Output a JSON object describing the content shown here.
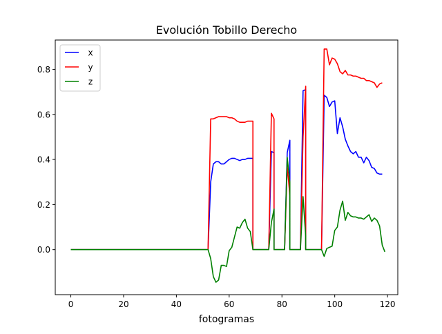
{
  "chart_data": {
    "type": "line",
    "title": "Evolución Tobillo Derecho",
    "xlabel": "fotogramas",
    "ylabel": "",
    "xlim": [
      -5.9,
      123.9
    ],
    "ylim": [
      -0.2,
      0.93
    ],
    "xticks": [
      0,
      20,
      40,
      60,
      80,
      100,
      120
    ],
    "yticks": [
      0.0,
      0.2,
      0.4,
      0.6,
      0.8
    ],
    "xtick_labels": [
      "0",
      "20",
      "40",
      "60",
      "80",
      "100",
      "120"
    ],
    "ytick_labels": [
      "0.0",
      "0.2",
      "0.4",
      "0.6",
      "0.8"
    ],
    "grid": false,
    "legend_position": "upper-left",
    "series": [
      {
        "name": "x",
        "color": "#0000ff",
        "points": [
          [
            0,
            0
          ],
          [
            52,
            0
          ],
          [
            53,
            0.3
          ],
          [
            54,
            0.38
          ],
          [
            55,
            0.39
          ],
          [
            56,
            0.39
          ],
          [
            57,
            0.38
          ],
          [
            58,
            0.38
          ],
          [
            59,
            0.39
          ],
          [
            60,
            0.4
          ],
          [
            61,
            0.405
          ],
          [
            62,
            0.405
          ],
          [
            63,
            0.4
          ],
          [
            64,
            0.395
          ],
          [
            65,
            0.4
          ],
          [
            66,
            0.4
          ],
          [
            67,
            0.405
          ],
          [
            68,
            0.405
          ],
          [
            69,
            0.405
          ],
          [
            69,
            0
          ],
          [
            75,
            0
          ],
          [
            76,
            0.435
          ],
          [
            77,
            0.43
          ],
          [
            77,
            0
          ],
          [
            81,
            0
          ],
          [
            82,
            0.43
          ],
          [
            83,
            0.485
          ],
          [
            83,
            0
          ],
          [
            87,
            0
          ],
          [
            88,
            0.705
          ],
          [
            89,
            0.71
          ],
          [
            89,
            0
          ],
          [
            95,
            0
          ],
          [
            96,
            0.685
          ],
          [
            97,
            0.675
          ],
          [
            98,
            0.635
          ],
          [
            99,
            0.655
          ],
          [
            100,
            0.66
          ],
          [
            101,
            0.515
          ],
          [
            102,
            0.585
          ],
          [
            103,
            0.545
          ],
          [
            104,
            0.49
          ],
          [
            105,
            0.46
          ],
          [
            106,
            0.435
          ],
          [
            107,
            0.425
          ],
          [
            108,
            0.435
          ],
          [
            109,
            0.41
          ],
          [
            110,
            0.41
          ],
          [
            111,
            0.385
          ],
          [
            112,
            0.41
          ],
          [
            113,
            0.395
          ],
          [
            114,
            0.365
          ],
          [
            115,
            0.36
          ],
          [
            116,
            0.34
          ],
          [
            117,
            0.335
          ],
          [
            118,
            0.335
          ]
        ]
      },
      {
        "name": "y",
        "color": "#ff0000",
        "points": [
          [
            0,
            0
          ],
          [
            52,
            0
          ],
          [
            53,
            0.58
          ],
          [
            54,
            0.58
          ],
          [
            55,
            0.585
          ],
          [
            56,
            0.59
          ],
          [
            57,
            0.59
          ],
          [
            58,
            0.59
          ],
          [
            59,
            0.59
          ],
          [
            60,
            0.585
          ],
          [
            61,
            0.585
          ],
          [
            62,
            0.58
          ],
          [
            63,
            0.57
          ],
          [
            64,
            0.565
          ],
          [
            65,
            0.565
          ],
          [
            66,
            0.565
          ],
          [
            67,
            0.57
          ],
          [
            68,
            0.57
          ],
          [
            69,
            0.57
          ],
          [
            69,
            0
          ],
          [
            75,
            0
          ],
          [
            76,
            0.605
          ],
          [
            77,
            0.58
          ],
          [
            77,
            0
          ],
          [
            81,
            0
          ],
          [
            82,
            0.37
          ],
          [
            83,
            0.24
          ],
          [
            83,
            0
          ],
          [
            87,
            0
          ],
          [
            88,
            0.5
          ],
          [
            89,
            0.725
          ],
          [
            89,
            0
          ],
          [
            95,
            0
          ],
          [
            96,
            0.89
          ],
          [
            97,
            0.89
          ],
          [
            98,
            0.82
          ],
          [
            99,
            0.85
          ],
          [
            100,
            0.845
          ],
          [
            101,
            0.825
          ],
          [
            102,
            0.79
          ],
          [
            103,
            0.78
          ],
          [
            104,
            0.795
          ],
          [
            105,
            0.775
          ],
          [
            106,
            0.775
          ],
          [
            107,
            0.77
          ],
          [
            108,
            0.77
          ],
          [
            109,
            0.765
          ],
          [
            110,
            0.76
          ],
          [
            111,
            0.76
          ],
          [
            112,
            0.75
          ],
          [
            113,
            0.75
          ],
          [
            114,
            0.745
          ],
          [
            115,
            0.74
          ],
          [
            116,
            0.72
          ],
          [
            117,
            0.735
          ],
          [
            118,
            0.74
          ]
        ]
      },
      {
        "name": "z",
        "color": "#008000",
        "points": [
          [
            0,
            0
          ],
          [
            52,
            0
          ],
          [
            53,
            -0.04
          ],
          [
            54,
            -0.12
          ],
          [
            55,
            -0.145
          ],
          [
            56,
            -0.135
          ],
          [
            57,
            -0.07
          ],
          [
            58,
            -0.07
          ],
          [
            59,
            -0.075
          ],
          [
            60,
            -0.005
          ],
          [
            61,
            0.01
          ],
          [
            62,
            0.055
          ],
          [
            63,
            0.1
          ],
          [
            64,
            0.095
          ],
          [
            65,
            0.12
          ],
          [
            66,
            0.135
          ],
          [
            67,
            0.095
          ],
          [
            68,
            0.08
          ],
          [
            69,
            0
          ],
          [
            75,
            0
          ],
          [
            76,
            0.12
          ],
          [
            77,
            0.18
          ],
          [
            77,
            0
          ],
          [
            81,
            0
          ],
          [
            82,
            0.41
          ],
          [
            83,
            0.3
          ],
          [
            83,
            0
          ],
          [
            87,
            0
          ],
          [
            88,
            0.235
          ],
          [
            89,
            0.06
          ],
          [
            89,
            0
          ],
          [
            95,
            0
          ],
          [
            96,
            -0.03
          ],
          [
            97,
            0.005
          ],
          [
            98,
            0.01
          ],
          [
            99,
            0.015
          ],
          [
            100,
            0.085
          ],
          [
            101,
            0.1
          ],
          [
            102,
            0.175
          ],
          [
            103,
            0.215
          ],
          [
            104,
            0.13
          ],
          [
            105,
            0.165
          ],
          [
            106,
            0.15
          ],
          [
            107,
            0.145
          ],
          [
            108,
            0.145
          ],
          [
            109,
            0.14
          ],
          [
            110,
            0.14
          ],
          [
            111,
            0.135
          ],
          [
            112,
            0.145
          ],
          [
            113,
            0.155
          ],
          [
            114,
            0.125
          ],
          [
            115,
            0.14
          ],
          [
            116,
            0.13
          ],
          [
            117,
            0.105
          ],
          [
            118,
            0.02
          ],
          [
            119,
            -0.01
          ]
        ]
      }
    ]
  }
}
